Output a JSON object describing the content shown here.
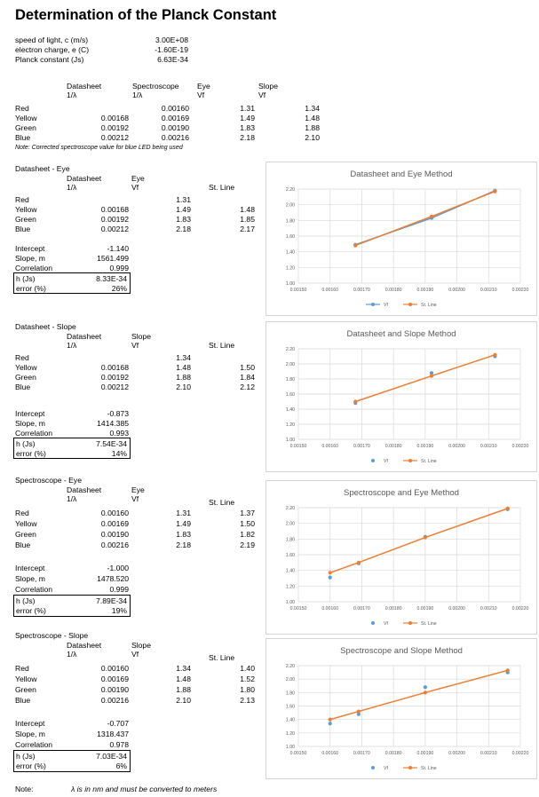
{
  "title": "Determination of the Planck Constant",
  "constants": [
    {
      "label": "speed of light, c (m/s)",
      "value": "3.00E+08"
    },
    {
      "label": "electron charge, e (C)",
      "value": "-1.60E-19"
    },
    {
      "label": "Planck constant (Js)",
      "value": "6.63E-34"
    }
  ],
  "summary": {
    "headers": {
      "datasheet": "Datasheet",
      "spectroscope": "Spectroscope",
      "eye": "Eye",
      "slope": "Slope"
    },
    "subheaders": {
      "datasheet": "1/λ",
      "spectroscope": "1/λ",
      "eye": "Vf",
      "slope": "Vf"
    },
    "rows": [
      {
        "color": "Red",
        "datasheet": "",
        "spectroscope": "0.00160",
        "eye": "1.31",
        "slope": "1.34"
      },
      {
        "color": "Yellow",
        "datasheet": "0.00168",
        "spectroscope": "0.00169",
        "eye": "1.49",
        "slope": "1.48"
      },
      {
        "color": "Green",
        "datasheet": "0.00192",
        "spectroscope": "0.00190",
        "eye": "1.83",
        "slope": "1.88"
      },
      {
        "color": "Blue",
        "datasheet": "0.00212",
        "spectroscope": "0.00216",
        "eye": "2.18",
        "slope": "2.10"
      }
    ],
    "note": "Note:  Corrected spectroscope value for blue LED being used"
  },
  "sections": [
    {
      "title": "Datasheet - Eye",
      "col1": "Datasheet",
      "col1sub": "1/λ",
      "col2": "Eye",
      "col2sub": "Vf",
      "col3": "St. Line",
      "rows": [
        {
          "color": "Red",
          "x": "",
          "vf": "1.31",
          "st": ""
        },
        {
          "color": "Yellow",
          "x": "0.00168",
          "vf": "1.49",
          "st": "1.48"
        },
        {
          "color": "Green",
          "x": "0.00192",
          "vf": "1.83",
          "st": "1.85"
        },
        {
          "color": "Blue",
          "x": "0.00212",
          "vf": "2.18",
          "st": "2.17"
        }
      ],
      "stats": [
        {
          "label": "Intercept",
          "value": "-1.140"
        },
        {
          "label": "Slope, m",
          "value": "1561.499"
        },
        {
          "label": "Correlation",
          "value": "0.999"
        }
      ],
      "h_label": "h (Js)",
      "h": "8.33E-34",
      "err_label": "error (%)",
      "err": "26%"
    },
    {
      "title": "Datasheet - Slope",
      "col1": "Datasheet",
      "col1sub": "1/λ",
      "col2": "Slope",
      "col2sub": "Vf",
      "col3": "St. Line",
      "rows": [
        {
          "color": "Red",
          "x": "",
          "vf": "1.34",
          "st": ""
        },
        {
          "color": "Yellow",
          "x": "0.00168",
          "vf": "1.48",
          "st": "1.50"
        },
        {
          "color": "Green",
          "x": "0.00192",
          "vf": "1.88",
          "st": "1.84"
        },
        {
          "color": "Blue",
          "x": "0.00212",
          "vf": "2.10",
          "st": "2.12"
        }
      ],
      "stats": [
        {
          "label": "Intercept",
          "value": "-0.873"
        },
        {
          "label": "Slope, m",
          "value": "1414.385"
        },
        {
          "label": "Correlation",
          "value": "0.993"
        }
      ],
      "h_label": "h (Js)",
      "h": "7.54E-34",
      "err_label": "error (%)",
      "err": "14%"
    },
    {
      "title": "Spectroscope - Eye",
      "col1": "Datasheet",
      "col1sub": "1/λ",
      "col2": "Eye",
      "col2sub": "Vf",
      "col3": "St. Line",
      "rows": [
        {
          "color": "Red",
          "x": "0.00160",
          "vf": "1.31",
          "st": "1.37"
        },
        {
          "color": "Yellow",
          "x": "0.00169",
          "vf": "1.49",
          "st": "1.50"
        },
        {
          "color": "Green",
          "x": "0.00190",
          "vf": "1.83",
          "st": "1.82"
        },
        {
          "color": "Blue",
          "x": "0.00216",
          "vf": "2.18",
          "st": "2.19"
        }
      ],
      "stats": [
        {
          "label": "Intercept",
          "value": "-1.000"
        },
        {
          "label": "Slope, m",
          "value": "1478.520"
        },
        {
          "label": "Correlation",
          "value": "0.999"
        }
      ],
      "h_label": "h (Js)",
      "h": "7.89E-34",
      "err_label": "error (%)",
      "err": "19%"
    },
    {
      "title": "Spectroscope - Slope",
      "col1": "Datasheet",
      "col1sub": "1/λ",
      "col2": "Slope",
      "col2sub": "Vf",
      "col3": "St. Line",
      "rows": [
        {
          "color": "Red",
          "x": "0.00160",
          "vf": "1.34",
          "st": "1.40"
        },
        {
          "color": "Yellow",
          "x": "0.00169",
          "vf": "1.48",
          "st": "1.52"
        },
        {
          "color": "Green",
          "x": "0.00190",
          "vf": "1.88",
          "st": "1.80"
        },
        {
          "color": "Blue",
          "x": "0.00216",
          "vf": "2.10",
          "st": "2.13"
        }
      ],
      "stats": [
        {
          "label": "Intercept",
          "value": "-0.707"
        },
        {
          "label": "Slope, m",
          "value": "1318.437"
        },
        {
          "label": "Correlation",
          "value": "0.978"
        }
      ],
      "h_label": "h (Js)",
      "h": "7.03E-34",
      "err_label": "error (%)",
      "err": "6%"
    }
  ],
  "footer": {
    "label": "Note:",
    "text": "λ is in nm and must be converted to meters"
  },
  "colors": {
    "vf": "#5B9BD5",
    "line": "#ED7D31",
    "grid": "#d9d9d9",
    "axis_text": "#595959"
  },
  "chart_data": [
    {
      "type": "scatter",
      "title": "Datasheet and Eye Method",
      "xlim": [
        0.0015,
        0.0022
      ],
      "ylim": [
        1.0,
        2.2
      ],
      "xticks": [
        "0.00150",
        "0.00160",
        "0.00170",
        "0.00180",
        "0.00190",
        "0.00200",
        "0.00210",
        "0.00220"
      ],
      "yticks": [
        "1.00",
        "1.20",
        "1.40",
        "1.60",
        "1.80",
        "2.00",
        "2.20"
      ],
      "series": [
        {
          "name": "Vf",
          "x": [
            0.00168,
            0.00192,
            0.00212
          ],
          "y": [
            1.49,
            1.83,
            2.18
          ],
          "connected": true
        },
        {
          "name": "St. Line",
          "x": [
            0.00168,
            0.00192,
            0.00212
          ],
          "y": [
            1.48,
            1.85,
            2.17
          ],
          "connected": true
        }
      ]
    },
    {
      "type": "scatter",
      "title": "Datasheet and Slope Method",
      "xlim": [
        0.0015,
        0.0022
      ],
      "ylim": [
        1.0,
        2.2
      ],
      "xticks": [
        "0.00150",
        "0.00160",
        "0.00170",
        "0.00180",
        "0.00190",
        "0.00200",
        "0.00210",
        "0.00220"
      ],
      "yticks": [
        "1.00",
        "1.20",
        "1.40",
        "1.60",
        "1.80",
        "2.00",
        "2.20"
      ],
      "series": [
        {
          "name": "Vf",
          "x": [
            0.00168,
            0.00192,
            0.00212
          ],
          "y": [
            1.48,
            1.88,
            2.1
          ],
          "connected": false
        },
        {
          "name": "St. Line",
          "x": [
            0.00168,
            0.00192,
            0.00212
          ],
          "y": [
            1.5,
            1.84,
            2.12
          ],
          "connected": true
        }
      ]
    },
    {
      "type": "scatter",
      "title": "Spectroscope and Eye Method",
      "xlim": [
        0.0015,
        0.0022
      ],
      "ylim": [
        1.0,
        2.2
      ],
      "xticks": [
        "0.00150",
        "0.00160",
        "0.00170",
        "0.00180",
        "0.00190",
        "0.00200",
        "0.00210",
        "0.00220"
      ],
      "yticks": [
        "1.00",
        "1.20",
        "1.40",
        "1.60",
        "1.80",
        "2.00",
        "2.20"
      ],
      "series": [
        {
          "name": "Vf",
          "x": [
            0.0016,
            0.00169,
            0.0019,
            0.00216
          ],
          "y": [
            1.31,
            1.49,
            1.83,
            2.18
          ],
          "connected": false
        },
        {
          "name": "St. Line",
          "x": [
            0.0016,
            0.00169,
            0.0019,
            0.00216
          ],
          "y": [
            1.37,
            1.5,
            1.82,
            2.19
          ],
          "connected": true
        }
      ]
    },
    {
      "type": "scatter",
      "title": "Spectroscope and Slope Method",
      "xlim": [
        0.0015,
        0.0022
      ],
      "ylim": [
        1.0,
        2.2
      ],
      "xticks": [
        "0.00150",
        "0.00160",
        "0.00170",
        "0.00180",
        "0.00190",
        "0.00200",
        "0.00210",
        "0.00220"
      ],
      "yticks": [
        "1.00",
        "1.20",
        "1.40",
        "1.60",
        "1.80",
        "2.00",
        "2.20"
      ],
      "series": [
        {
          "name": "Vf",
          "x": [
            0.0016,
            0.00169,
            0.0019,
            0.00216
          ],
          "y": [
            1.34,
            1.48,
            1.88,
            2.1
          ],
          "connected": false
        },
        {
          "name": "St. Line",
          "x": [
            0.0016,
            0.00169,
            0.0019,
            0.00216
          ],
          "y": [
            1.4,
            1.52,
            1.8,
            2.13
          ],
          "connected": true
        }
      ]
    }
  ]
}
